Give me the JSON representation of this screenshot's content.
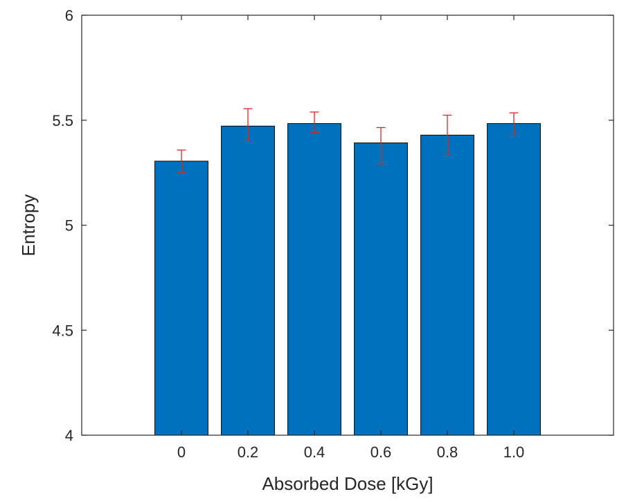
{
  "chart_data": {
    "type": "bar",
    "title": "",
    "xlabel": "Absorbed Dose [kGy]",
    "ylabel": "Entropy",
    "categories": [
      "0",
      "0.2",
      "0.4",
      "0.6",
      "0.8",
      "1.0"
    ],
    "values": [
      5.305,
      5.472,
      5.484,
      5.392,
      5.429,
      5.484
    ],
    "error_low": [
      5.252,
      5.399,
      5.441,
      5.285,
      5.333,
      5.428
    ],
    "error_high": [
      5.358,
      5.555,
      5.539,
      5.465,
      5.524,
      5.535
    ],
    "ylim": [
      4,
      6
    ],
    "yticks": [
      "4",
      "4.5",
      "5",
      "5.5",
      "6"
    ],
    "ytick_values": [
      4,
      4.5,
      5,
      5.5,
      6
    ],
    "grid": false,
    "legend": "none",
    "colors": {
      "bar_fill": "#0072bd",
      "bar_edge": "#000000",
      "error_bar": "#d62728",
      "axis": "#262626"
    }
  }
}
